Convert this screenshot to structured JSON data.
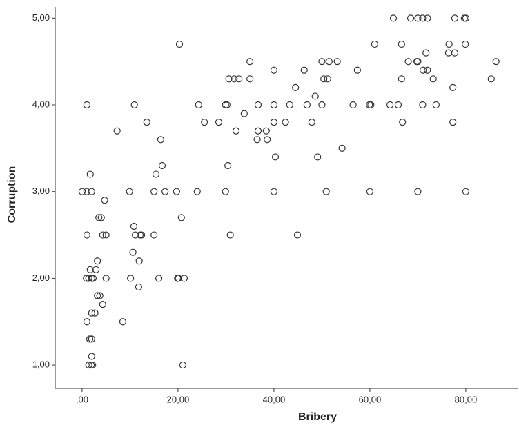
{
  "chart_data": {
    "type": "scatter",
    "x_label": "Bribery",
    "y_label": "Corruption",
    "color": "#333333",
    "x": [
      64.9,
      68.5,
      70,
      71,
      72,
      77.7,
      79.7,
      80,
      20.3,
      61,
      66.6,
      76.5,
      79.9,
      71.7,
      76.4,
      77.7,
      35,
      50,
      51.5,
      53.2,
      68,
      69.8,
      70,
      86.3,
      40,
      46.3,
      57.4,
      71.1,
      72,
      30.6,
      31.7,
      32.7,
      35,
      50.4,
      51.2,
      66.6,
      73.2,
      85.3,
      44.5,
      77.3,
      48.6,
      1,
      10.9,
      24.3,
      29.9,
      30.2,
      36.7,
      40,
      43.3,
      46.9,
      50,
      56.5,
      59.9,
      60.2,
      64.2,
      65.9,
      71,
      73.8,
      33.8,
      13.5,
      25.5,
      28.5,
      40,
      42.4,
      47.9,
      66.8,
      77.3,
      7.3,
      32.1,
      36.7,
      38.4,
      16.4,
      36.5,
      38.6,
      54.2,
      40.3,
      49.1,
      16.7,
      30.4,
      1.7,
      15.4,
      0,
      1,
      2,
      9.9,
      15,
      17.3,
      19.7,
      24,
      29.9,
      40,
      50.9,
      60,
      70,
      80,
      4.7,
      3.5,
      4,
      20.7,
      10.8,
      1,
      4.3,
      5,
      11.1,
      12.1,
      12.4,
      15,
      30.9,
      44.9,
      10.6,
      3.2,
      11.9,
      1.7,
      2.9,
      0.9,
      1.4,
      2,
      2.3,
      5,
      10.1,
      16,
      19.9,
      20.1,
      21.3,
      11.8,
      3.2,
      3.7,
      4.3,
      2,
      2.7,
      1,
      8.5,
      1.6,
      2,
      2,
      1.4,
      1.9,
      2.2,
      21
    ],
    "values": [
      5,
      5,
      5,
      5,
      5,
      5,
      5,
      5,
      4.7,
      4.7,
      4.7,
      4.7,
      4.7,
      4.6,
      4.6,
      4.6,
      4.5,
      4.5,
      4.5,
      4.5,
      4.5,
      4.5,
      4.5,
      4.5,
      4.4,
      4.4,
      4.4,
      4.4,
      4.4,
      4.3,
      4.3,
      4.3,
      4.3,
      4.3,
      4.3,
      4.3,
      4.3,
      4.3,
      4.2,
      4.2,
      4.1,
      4,
      4,
      4,
      4,
      4,
      4,
      4,
      4,
      4,
      4,
      4,
      4,
      4,
      4,
      4,
      4,
      4,
      3.9,
      3.8,
      3.8,
      3.8,
      3.8,
      3.8,
      3.8,
      3.8,
      3.8,
      3.7,
      3.7,
      3.7,
      3.7,
      3.6,
      3.6,
      3.6,
      3.5,
      3.4,
      3.4,
      3.3,
      3.3,
      3.2,
      3.2,
      3,
      3,
      3,
      3,
      3,
      3,
      3,
      3,
      3,
      3,
      3,
      3,
      3,
      3,
      2.9,
      2.7,
      2.7,
      2.7,
      2.6,
      2.5,
      2.5,
      2.5,
      2.5,
      2.5,
      2.5,
      2.5,
      2.5,
      2.5,
      2.3,
      2.2,
      2.2,
      2.1,
      2.1,
      2,
      2,
      2,
      2,
      2,
      2,
      2,
      2,
      2,
      2,
      1.9,
      1.8,
      1.8,
      1.7,
      1.6,
      1.6,
      1.5,
      1.5,
      1.3,
      1.3,
      1.1,
      1,
      1,
      1,
      1
    ],
    "xlim": [
      -5.6,
      90.8
    ],
    "ylim": [
      0.73,
      5.13
    ],
    "xticks": [
      {
        "value": 0,
        "label": ",00"
      },
      {
        "value": 20,
        "label": "20,00"
      },
      {
        "value": 40,
        "label": "40,00"
      },
      {
        "value": 60,
        "label": "60,00"
      },
      {
        "value": 80,
        "label": "80,00"
      }
    ],
    "yticks": [
      {
        "value": 1,
        "label": "1,00"
      },
      {
        "value": 2,
        "label": "2,00"
      },
      {
        "value": 3,
        "label": "3,00"
      },
      {
        "value": 4,
        "label": "4,00"
      },
      {
        "value": 5,
        "label": "5,00"
      }
    ],
    "grid": false
  }
}
